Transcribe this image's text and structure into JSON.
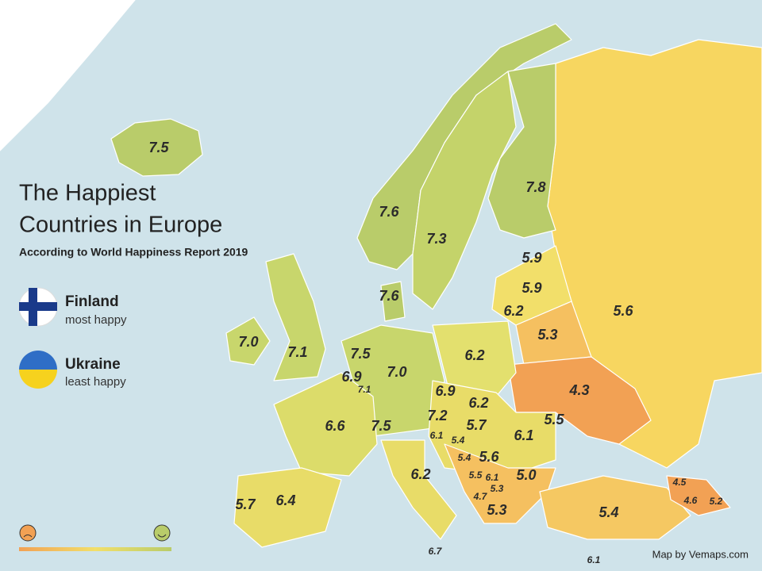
{
  "title_lines": [
    "The Happiest",
    "Countries in Europe"
  ],
  "subtitle": "According to World Happiness Report 2019",
  "highlights": [
    {
      "country": "Finland",
      "note": "most happy"
    },
    {
      "country": "Ukraine",
      "note": "least happy"
    }
  ],
  "credit": "Map by Vemaps.com",
  "labels": [
    "7.5",
    "7.6",
    "7.3",
    "7.8",
    "5.9",
    "5.9",
    "6.2",
    "5.6",
    "5.3",
    "7.6",
    "7.0",
    "7.1",
    "7.5",
    "6.9",
    "7.1",
    "7.0",
    "6.2",
    "4.3",
    "6.9",
    "6.2",
    "5.5",
    "7.2",
    "5.7",
    "6.6",
    "7.5",
    "6.1",
    "5.4",
    "6.1",
    "5.4",
    "5.6",
    "6.2",
    "5.5",
    "6.1",
    "5.0",
    "5.3",
    "4.7",
    "5.3",
    "4.5",
    "4.6",
    "5.2",
    "5.4",
    "6.4",
    "5.7",
    "6.7",
    "6.1"
  ]
}
